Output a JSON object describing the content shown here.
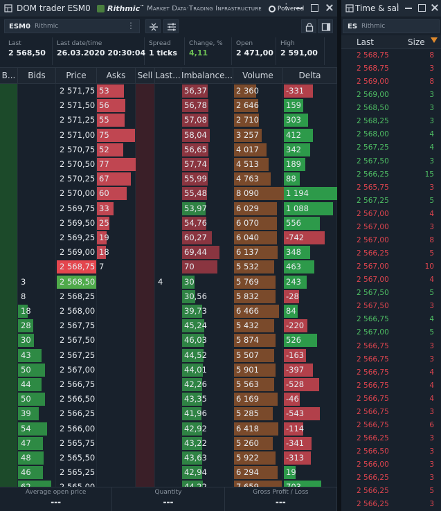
{
  "dom": {
    "title": "DOM trader ESM0",
    "brand": {
      "name": "Rithmic",
      "tm": "™",
      "tagline": "Market Data·Trading Infrastructure",
      "powered": "Powered"
    },
    "symbol": "ESM0",
    "provider": "Rithmic",
    "stats": [
      {
        "label": "Last",
        "value": "2 568,50",
        "color": "white"
      },
      {
        "label": "Last date/time",
        "value": "26.03.2020 20:30:04",
        "color": "white"
      },
      {
        "label": "Spread",
        "value": "1 ticks",
        "color": "white"
      },
      {
        "label": "Change, %",
        "value": "4,11",
        "color": "green"
      },
      {
        "label": "Open",
        "value": "2 471,00",
        "color": "white"
      },
      {
        "label": "High",
        "value": "2 591,00",
        "color": "white"
      }
    ],
    "headers": [
      "B...",
      "Bids",
      "Price",
      "Asks",
      "Sell",
      "Last...",
      "Imbalance...",
      "Volume",
      "Delta"
    ],
    "rows": [
      {
        "bids": "",
        "price": "2 571,75",
        "asks": "53",
        "ask_frac": 0.55,
        "last": "",
        "imb": "56,37",
        "imb_frac": 0.49,
        "vol": "2 360",
        "vol_frac": 0.45,
        "delta": "-331",
        "delta_frac": 0.55,
        "delta_sign": "neg"
      },
      {
        "bids": "",
        "price": "2 571,50",
        "asks": "56",
        "ask_frac": 0.58,
        "last": "",
        "imb": "56,78",
        "imb_frac": 0.5,
        "vol": "2 646",
        "vol_frac": 0.49,
        "delta": "159",
        "delta_frac": 0.36,
        "delta_sign": "pos"
      },
      {
        "bids": "",
        "price": "2 571,25",
        "asks": "55",
        "ask_frac": 0.57,
        "last": "",
        "imb": "57,08",
        "imb_frac": 0.51,
        "vol": "2 710",
        "vol_frac": 0.5,
        "delta": "303",
        "delta_frac": 0.46,
        "delta_sign": "pos"
      },
      {
        "bids": "",
        "price": "2 571,00",
        "asks": "75",
        "ask_frac": 0.78,
        "last": "",
        "imb": "58,04",
        "imb_frac": 0.53,
        "vol": "3 257",
        "vol_frac": 0.56,
        "delta": "412",
        "delta_frac": 0.55,
        "delta_sign": "pos"
      },
      {
        "bids": "",
        "price": "2 570,75",
        "asks": "52",
        "ask_frac": 0.54,
        "last": "",
        "imb": "56,65",
        "imb_frac": 0.5,
        "vol": "4 017",
        "vol_frac": 0.65,
        "delta": "342",
        "delta_frac": 0.49,
        "delta_sign": "pos"
      },
      {
        "bids": "",
        "price": "2 570,50",
        "asks": "77",
        "ask_frac": 0.8,
        "last": "",
        "imb": "57,74",
        "imb_frac": 0.52,
        "vol": "4 513",
        "vol_frac": 0.7,
        "delta": "189",
        "delta_frac": 0.4,
        "delta_sign": "pos"
      },
      {
        "bids": "",
        "price": "2 570,25",
        "asks": "67",
        "ask_frac": 0.7,
        "last": "",
        "imb": "55,99",
        "imb_frac": 0.49,
        "vol": "4 763",
        "vol_frac": 0.73,
        "delta": "88",
        "delta_frac": 0.3,
        "delta_sign": "pos"
      },
      {
        "bids": "",
        "price": "2 570,00",
        "asks": "60",
        "ask_frac": 0.62,
        "last": "",
        "imb": "55,48",
        "imb_frac": 0.48,
        "vol": "8 090",
        "vol_frac": 1.0,
        "delta": "1 194",
        "delta_frac": 1.0,
        "delta_sign": "pos"
      },
      {
        "bids": "",
        "price": "2 569,75",
        "asks": "33",
        "ask_frac": 0.34,
        "last": "",
        "imb": "53,97",
        "imb_frac": 0.45,
        "vol": "6 029",
        "vol_frac": 0.86,
        "delta": "1 088",
        "delta_frac": 0.92,
        "delta_sign": "pos"
      },
      {
        "bids": "",
        "price": "2 569,50",
        "asks": "25",
        "ask_frac": 0.26,
        "last": "",
        "imb": "54,76",
        "imb_frac": 0.47,
        "vol": "6 070",
        "vol_frac": 0.86,
        "delta": "556",
        "delta_frac": 0.68,
        "delta_sign": "pos"
      },
      {
        "bids": "",
        "price": "2 569,25",
        "asks": "19",
        "ask_frac": 0.2,
        "last": "",
        "imb": "60,27",
        "imb_frac": 0.57,
        "vol": "6 040",
        "vol_frac": 0.86,
        "delta": "-742",
        "delta_frac": 0.76,
        "delta_sign": "neg"
      },
      {
        "bids": "",
        "price": "2 569,00",
        "asks": "18",
        "ask_frac": 0.19,
        "last": "",
        "imb": "69,44",
        "imb_frac": 0.72,
        "vol": "6 137",
        "vol_frac": 0.87,
        "delta": "348",
        "delta_frac": 0.49,
        "delta_sign": "pos"
      },
      {
        "bids": "",
        "price": "2 568,75",
        "price_hl": "ask",
        "asks": "7",
        "ask_frac": 0,
        "last": "",
        "imb": "70",
        "imb_frac": 0.68,
        "vol": "5 532",
        "vol_frac": 0.81,
        "delta": "463",
        "delta_frac": 0.57,
        "delta_sign": "pos"
      },
      {
        "bids": "3",
        "bid_frac": 0,
        "price": "2 568,50",
        "price_hl": "bid",
        "asks": "",
        "last": "4",
        "imb": "30",
        "imb_frac": 0.24,
        "vol": "5 769",
        "vol_frac": 0.83,
        "delta": "243",
        "delta_frac": 0.43,
        "delta_sign": "pos"
      },
      {
        "bids": "8",
        "bid_frac": 0,
        "price": "2 568,25",
        "asks": "",
        "last": "",
        "imb": "30,56",
        "imb_frac": 0.25,
        "vol": "5 832",
        "vol_frac": 0.84,
        "delta": "-28",
        "delta_frac": 0.28,
        "delta_sign": "neg"
      },
      {
        "bids": "18",
        "bid_frac": 0.2,
        "price": "2 568,00",
        "asks": "",
        "last": "",
        "imb": "39,73",
        "imb_frac": 0.38,
        "vol": "6 466",
        "vol_frac": 0.9,
        "delta": "84",
        "delta_frac": 0.26,
        "delta_sign": "pos"
      },
      {
        "bids": "28",
        "bid_frac": 0.31,
        "price": "2 567,75",
        "asks": "",
        "last": "",
        "imb": "45,24",
        "imb_frac": 0.42,
        "vol": "5 432",
        "vol_frac": 0.8,
        "delta": "-220",
        "delta_frac": 0.44,
        "delta_sign": "neg"
      },
      {
        "bids": "30",
        "bid_frac": 0.33,
        "price": "2 567,50",
        "asks": "",
        "last": "",
        "imb": "46,03",
        "imb_frac": 0.43,
        "vol": "5 874",
        "vol_frac": 0.84,
        "delta": "526",
        "delta_frac": 0.62,
        "delta_sign": "pos"
      },
      {
        "bids": "43",
        "bid_frac": 0.48,
        "price": "2 567,25",
        "asks": "",
        "last": "",
        "imb": "44,52",
        "imb_frac": 0.41,
        "vol": "5 507",
        "vol_frac": 0.81,
        "delta": "-163",
        "delta_frac": 0.41,
        "delta_sign": "neg"
      },
      {
        "bids": "50",
        "bid_frac": 0.56,
        "price": "2 567,00",
        "asks": "",
        "last": "",
        "imb": "44,01",
        "imb_frac": 0.4,
        "vol": "5 901",
        "vol_frac": 0.84,
        "delta": "-397",
        "delta_frac": 0.55,
        "delta_sign": "neg"
      },
      {
        "bids": "44",
        "bid_frac": 0.49,
        "price": "2 566,75",
        "asks": "",
        "last": "",
        "imb": "42,26",
        "imb_frac": 0.38,
        "vol": "5 563",
        "vol_frac": 0.81,
        "delta": "-528",
        "delta_frac": 0.66,
        "delta_sign": "neg"
      },
      {
        "bids": "50",
        "bid_frac": 0.56,
        "price": "2 566,50",
        "asks": "",
        "last": "",
        "imb": "43,35",
        "imb_frac": 0.39,
        "vol": "6 169",
        "vol_frac": 0.87,
        "delta": "-46",
        "delta_frac": 0.3,
        "delta_sign": "neg"
      },
      {
        "bids": "39",
        "bid_frac": 0.43,
        "price": "2 566,25",
        "asks": "",
        "last": "",
        "imb": "41,96",
        "imb_frac": 0.37,
        "vol": "5 285",
        "vol_frac": 0.78,
        "delta": "-543",
        "delta_frac": 0.67,
        "delta_sign": "neg"
      },
      {
        "bids": "54",
        "bid_frac": 0.6,
        "price": "2 566,00",
        "asks": "",
        "last": "",
        "imb": "42,92",
        "imb_frac": 0.39,
        "vol": "6 418",
        "vol_frac": 0.89,
        "delta": "-114",
        "delta_frac": 0.36,
        "delta_sign": "neg"
      },
      {
        "bids": "47",
        "bid_frac": 0.52,
        "price": "2 565,75",
        "asks": "",
        "last": "",
        "imb": "43,22",
        "imb_frac": 0.39,
        "vol": "5 260",
        "vol_frac": 0.78,
        "delta": "-341",
        "delta_frac": 0.52,
        "delta_sign": "neg"
      },
      {
        "bids": "48",
        "bid_frac": 0.53,
        "price": "2 565,50",
        "asks": "",
        "last": "",
        "imb": "43,63",
        "imb_frac": 0.39,
        "vol": "5 922",
        "vol_frac": 0.84,
        "delta": "-313",
        "delta_frac": 0.5,
        "delta_sign": "neg"
      },
      {
        "bids": "46",
        "bid_frac": 0.51,
        "price": "2 565,25",
        "asks": "",
        "last": "",
        "imb": "42,94",
        "imb_frac": 0.39,
        "vol": "6 294",
        "vol_frac": 0.88,
        "delta": "19",
        "delta_frac": 0.22,
        "delta_sign": "pos"
      },
      {
        "bids": "62",
        "bid_frac": 0.69,
        "price": "2 565,00",
        "asks": "",
        "last": "",
        "imb": "44,22",
        "imb_frac": 0.4,
        "vol": "7 659",
        "vol_frac": 0.96,
        "delta": "703",
        "delta_frac": 0.7,
        "delta_sign": "pos"
      }
    ],
    "footer": [
      {
        "label": "Average open price",
        "value": "---"
      },
      {
        "label": "Quantity",
        "value": "---"
      },
      {
        "label": "Gross Profit / Loss",
        "value": "---"
      }
    ],
    "colors": {
      "ask_bar": "#c04651",
      "bid_bar": "#2e8a44",
      "imb_bar": "#2f8344",
      "vol_bar": "#7a4a2b",
      "delta_pos": "#2d9a4a",
      "delta_neg": "#b2404a",
      "price_ask_hl": "#e4464e",
      "price_bid_hl": "#4faa4a"
    }
  },
  "time_sales": {
    "title": "Time & sales",
    "symbol": "ES",
    "provider": "Rithmic",
    "headers": {
      "last": "Last",
      "size": "Size"
    },
    "rows": [
      {
        "price": "2 568,75",
        "size": "8",
        "side": "red"
      },
      {
        "price": "2 568,75",
        "size": "3",
        "side": "red"
      },
      {
        "price": "2 569,00",
        "size": "8",
        "side": "red"
      },
      {
        "price": "2 569,00",
        "size": "3",
        "side": "green"
      },
      {
        "price": "2 568,50",
        "size": "3",
        "side": "green"
      },
      {
        "price": "2 568,25",
        "size": "3",
        "side": "green"
      },
      {
        "price": "2 568,00",
        "size": "4",
        "side": "green"
      },
      {
        "price": "2 567,25",
        "size": "4",
        "side": "green"
      },
      {
        "price": "2 567,50",
        "size": "3",
        "side": "green"
      },
      {
        "price": "2 566,25",
        "size": "15",
        "side": "green"
      },
      {
        "price": "2 565,75",
        "size": "3",
        "side": "red"
      },
      {
        "price": "2 567,25",
        "size": "5",
        "side": "green"
      },
      {
        "price": "2 567,00",
        "size": "4",
        "side": "red"
      },
      {
        "price": "2 567,00",
        "size": "3",
        "side": "red"
      },
      {
        "price": "2 567,00",
        "size": "8",
        "side": "red"
      },
      {
        "price": "2 566,25",
        "size": "5",
        "side": "red"
      },
      {
        "price": "2 567,00",
        "size": "10",
        "side": "red"
      },
      {
        "price": "2 567,00",
        "size": "4",
        "side": "red"
      },
      {
        "price": "2 567,50",
        "size": "5",
        "side": "green"
      },
      {
        "price": "2 567,50",
        "size": "3",
        "side": "red"
      },
      {
        "price": "2 566,75",
        "size": "4",
        "side": "green"
      },
      {
        "price": "2 567,00",
        "size": "5",
        "side": "green"
      },
      {
        "price": "2 566,75",
        "size": "3",
        "side": "red"
      },
      {
        "price": "2 566,75",
        "size": "3",
        "side": "red"
      },
      {
        "price": "2 566,75",
        "size": "4",
        "side": "red"
      },
      {
        "price": "2 566,75",
        "size": "4",
        "side": "red"
      },
      {
        "price": "2 566,75",
        "size": "4",
        "side": "red"
      },
      {
        "price": "2 566,75",
        "size": "3",
        "side": "red"
      },
      {
        "price": "2 566,75",
        "size": "6",
        "side": "red"
      },
      {
        "price": "2 566,25",
        "size": "3",
        "side": "red"
      },
      {
        "price": "2 566,50",
        "size": "3",
        "side": "red"
      },
      {
        "price": "2 566,00",
        "size": "3",
        "side": "red"
      },
      {
        "price": "2 566,25",
        "size": "3",
        "side": "red"
      },
      {
        "price": "2 566,25",
        "size": "5",
        "side": "red"
      },
      {
        "price": "2 566,25",
        "size": "3",
        "side": "red"
      },
      {
        "price": "2 566,25",
        "size": "3",
        "side": "red"
      }
    ]
  }
}
